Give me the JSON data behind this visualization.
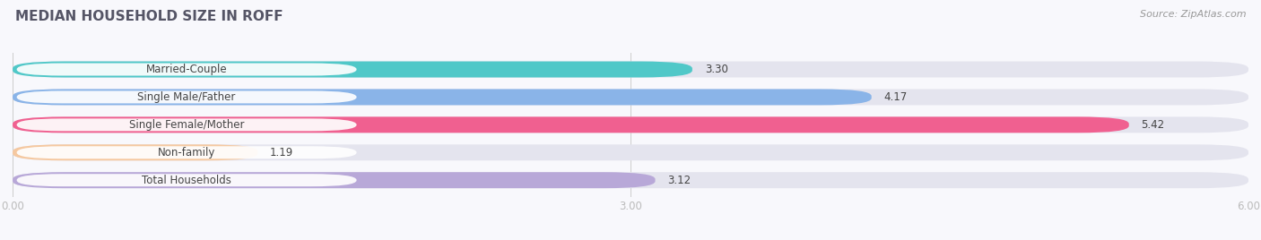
{
  "title": "MEDIAN HOUSEHOLD SIZE IN ROFF",
  "source": "Source: ZipAtlas.com",
  "categories": [
    "Married-Couple",
    "Single Male/Father",
    "Single Female/Mother",
    "Non-family",
    "Total Households"
  ],
  "values": [
    3.3,
    4.17,
    5.42,
    1.19,
    3.12
  ],
  "bar_colors": [
    "#50c8c8",
    "#8ab4e8",
    "#f06090",
    "#f5c8a0",
    "#b8a8d8"
  ],
  "bar_bg_color": "#e4e4ee",
  "xlim": [
    0,
    6.0
  ],
  "xticks": [
    0.0,
    3.0,
    6.0
  ],
  "xtick_labels": [
    "0.00",
    "3.00",
    "6.00"
  ],
  "title_fontsize": 11,
  "source_fontsize": 8,
  "label_fontsize": 8.5,
  "value_fontsize": 8.5,
  "background_color": "#f8f8fc",
  "bar_height": 0.58,
  "label_text_color": "#444444",
  "value_text_color": "#444444",
  "pill_bg_color": "#ffffff"
}
